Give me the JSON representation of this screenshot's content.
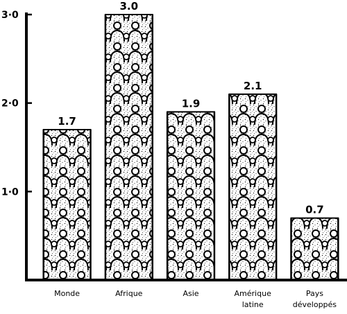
{
  "chart_data": {
    "type": "bar",
    "title": "",
    "xlabel": "",
    "ylabel": "",
    "ylim": [
      0,
      3.0
    ],
    "yticks": [
      {
        "value": 1.0,
        "label": "1·0"
      },
      {
        "value": 2.0,
        "label": "2·0"
      },
      {
        "value": 3.0,
        "label": "3·0"
      }
    ],
    "categories": [
      [
        "Monde"
      ],
      [
        "Afrique"
      ],
      [
        "Asie"
      ],
      [
        "Amérique",
        "latine"
      ],
      [
        "Pays",
        "développés"
      ]
    ],
    "values": [
      1.7,
      3.0,
      1.9,
      2.1,
      0.7
    ],
    "value_labels": [
      "1.7",
      "3.0",
      "1.9",
      "2.1",
      "0.7"
    ],
    "grid": false,
    "legend": "none",
    "bar_fill": "pictogram-people",
    "colors": {
      "ink": "#000000",
      "background": "#ffffff"
    }
  }
}
